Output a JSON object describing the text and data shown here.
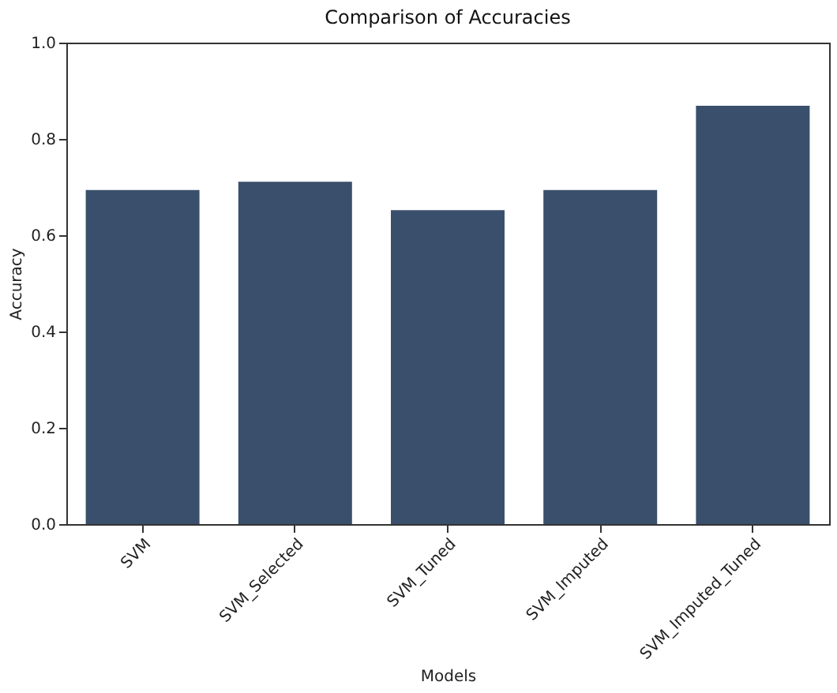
{
  "chart_data": {
    "type": "bar",
    "title": "Comparison of Accuracies",
    "xlabel": "Models",
    "ylabel": "Accuracy",
    "categories": [
      "SVM",
      "SVM_Selected",
      "SVM_Tuned",
      "SVM_Imputed",
      "SVM_Imputed_Tuned"
    ],
    "values": [
      0.694,
      0.711,
      0.652,
      0.694,
      0.869
    ],
    "color": "#3a4f6b",
    "ylim": [
      0,
      1.0
    ],
    "yticks": [
      {
        "value": 0,
        "label": "0.0"
      },
      {
        "value": 0.2,
        "label": "0.2"
      },
      {
        "value": 0.4,
        "label": "0.4"
      },
      {
        "value": 0.6,
        "label": "0.6"
      },
      {
        "value": 0.8,
        "label": "0.8"
      },
      {
        "value": 1,
        "label": "1.0"
      }
    ],
    "grid": false
  }
}
